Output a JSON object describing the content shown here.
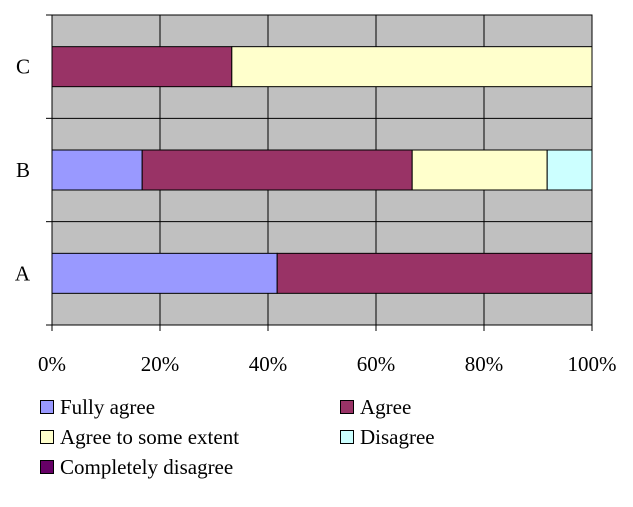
{
  "chart_data": {
    "type": "bar",
    "orientation": "horizontal",
    "stacking": "percent",
    "categories": [
      "A",
      "B",
      "C"
    ],
    "series": [
      {
        "name": "Fully agree",
        "color": "#9999ff",
        "values": [
          41.7,
          16.7,
          0
        ]
      },
      {
        "name": "Agree",
        "color": "#993366",
        "values": [
          58.3,
          50.0,
          33.3
        ]
      },
      {
        "name": "Agree to some extent",
        "color": "#ffffcc",
        "values": [
          0,
          25.0,
          66.7
        ]
      },
      {
        "name": "Disagree",
        "color": "#ccffff",
        "values": [
          0,
          8.3,
          0
        ]
      },
      {
        "name": "Completely disagree",
        "color": "#660066",
        "values": [
          0,
          0,
          0
        ]
      }
    ],
    "xticks": [
      "0%",
      "20%",
      "40%",
      "60%",
      "80%",
      "100%"
    ],
    "xlim": [
      0,
      100
    ],
    "grid": true,
    "plot_background": "#c0c0c0",
    "legend_position": "bottom"
  }
}
